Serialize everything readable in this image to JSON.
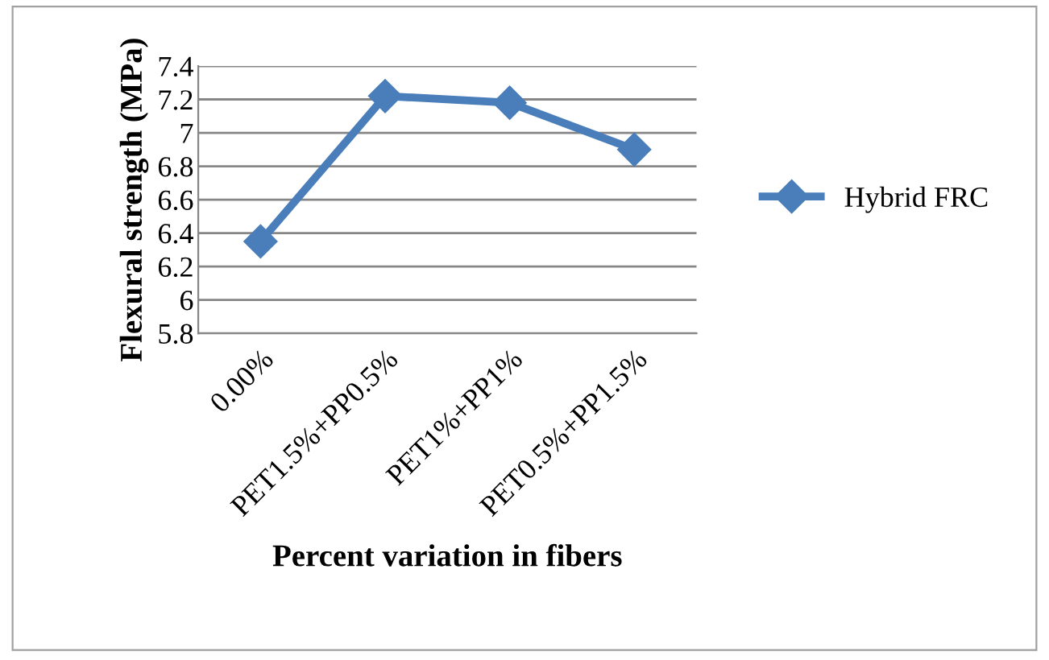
{
  "chart_data": {
    "type": "line",
    "xlabel": "Percent variation in fibers",
    "ylabel": "Flexural strength (MPa)",
    "categories": [
      "0.00%",
      "PET1.5%+PP0.5%",
      "PET1%+PP1%",
      "PET0.5%+PP1.5%"
    ],
    "series": [
      {
        "name": "Hybrid FRC",
        "color": "#4a7ebb",
        "values": [
          6.35,
          7.22,
          7.18,
          6.9
        ]
      }
    ],
    "ylim": [
      5.8,
      7.4
    ],
    "yticks": [
      5.8,
      6,
      6.2,
      6.4,
      6.6,
      6.8,
      7,
      7.2,
      7.4
    ],
    "grid": "y",
    "legend": "right",
    "marker": "diamond",
    "line_style": "solid"
  }
}
